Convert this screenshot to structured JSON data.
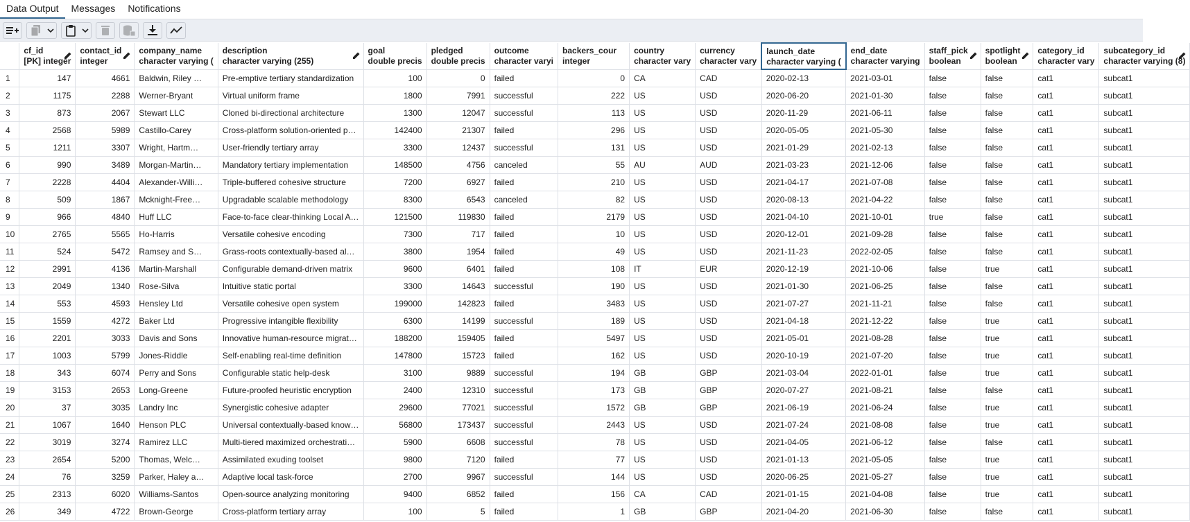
{
  "tabs": [
    "Data Output",
    "Messages",
    "Notifications"
  ],
  "toolbar": {
    "icons": [
      "add-row-icon",
      "copy-icon",
      "chevron-down-icon",
      "paste-icon",
      "chevron-down-icon",
      "delete-icon",
      "save-data-icon",
      "download-icon",
      "graph-icon"
    ]
  },
  "columns": [
    {
      "name": "cf_id",
      "type": "[PK] integer",
      "align": "num",
      "editable": true
    },
    {
      "name": "contact_id",
      "type": "integer",
      "align": "num",
      "editable": true
    },
    {
      "name": "company_name",
      "type": "character varying (",
      "align": "text",
      "editable": false
    },
    {
      "name": "description",
      "type": "character varying (255)",
      "align": "text",
      "editable": true
    },
    {
      "name": "goal",
      "type": "double precis",
      "align": "num",
      "editable": false
    },
    {
      "name": "pledged",
      "type": "double precis",
      "align": "num",
      "editable": false
    },
    {
      "name": "outcome",
      "type": "character varyi",
      "align": "text",
      "editable": false
    },
    {
      "name": "backers_cour",
      "type": "integer",
      "align": "num",
      "editable": false
    },
    {
      "name": "country",
      "type": "character vary",
      "align": "text",
      "editable": false
    },
    {
      "name": "currency",
      "type": "character vary",
      "align": "text",
      "editable": false
    },
    {
      "name": "launch_date",
      "type": "character varying (",
      "align": "text",
      "editable": false
    },
    {
      "name": "end_date",
      "type": "character varying",
      "align": "text",
      "editable": false
    },
    {
      "name": "staff_pick",
      "type": "boolean",
      "align": "text",
      "editable": true
    },
    {
      "name": "spotlight",
      "type": "boolean",
      "align": "text",
      "editable": true
    },
    {
      "name": "category_id",
      "type": "character vary",
      "align": "text",
      "editable": false
    },
    {
      "name": "subcategory_id",
      "type": "character varying (8)",
      "align": "text",
      "editable": true
    }
  ],
  "rows": [
    [
      "1",
      "147",
      "4661",
      "Baldwin, Riley …",
      "Pre-emptive tertiary standardization",
      "100",
      "0",
      "failed",
      "0",
      "CA",
      "CAD",
      "2020-02-13",
      "2021-03-01",
      "false",
      "false",
      "cat1",
      "subcat1"
    ],
    [
      "2",
      "1175",
      "2288",
      "Werner-Bryant",
      "Virtual uniform frame",
      "1800",
      "7991",
      "successful",
      "222",
      "US",
      "USD",
      "2020-06-20",
      "2021-01-30",
      "false",
      "false",
      "cat1",
      "subcat1"
    ],
    [
      "3",
      "873",
      "2067",
      "Stewart LLC",
      "Cloned bi-directional architecture",
      "1300",
      "12047",
      "successful",
      "113",
      "US",
      "USD",
      "2020-11-29",
      "2021-06-11",
      "false",
      "false",
      "cat1",
      "subcat1"
    ],
    [
      "4",
      "2568",
      "5989",
      "Castillo-Carey",
      "Cross-platform solution-oriented p…",
      "142400",
      "21307",
      "failed",
      "296",
      "US",
      "USD",
      "2020-05-05",
      "2021-05-30",
      "false",
      "false",
      "cat1",
      "subcat1"
    ],
    [
      "5",
      "1211",
      "3307",
      "Wright, Hartm…",
      "User-friendly tertiary array",
      "3300",
      "12437",
      "successful",
      "131",
      "US",
      "USD",
      "2021-01-29",
      "2021-02-13",
      "false",
      "false",
      "cat1",
      "subcat1"
    ],
    [
      "6",
      "990",
      "3489",
      "Morgan-Martin…",
      "Mandatory tertiary implementation",
      "148500",
      "4756",
      "canceled",
      "55",
      "AU",
      "AUD",
      "2021-03-23",
      "2021-12-06",
      "false",
      "false",
      "cat1",
      "subcat1"
    ],
    [
      "7",
      "2228",
      "4404",
      "Alexander-Willi…",
      "Triple-buffered cohesive structure",
      "7200",
      "6927",
      "failed",
      "210",
      "US",
      "USD",
      "2021-04-17",
      "2021-07-08",
      "false",
      "false",
      "cat1",
      "subcat1"
    ],
    [
      "8",
      "509",
      "1867",
      "Mcknight-Free…",
      "Upgradable scalable methodology",
      "8300",
      "6543",
      "canceled",
      "82",
      "US",
      "USD",
      "2020-08-13",
      "2021-04-22",
      "false",
      "false",
      "cat1",
      "subcat1"
    ],
    [
      "9",
      "966",
      "4840",
      "Huff LLC",
      "Face-to-face clear-thinking Local A…",
      "121500",
      "119830",
      "failed",
      "2179",
      "US",
      "USD",
      "2021-04-10",
      "2021-10-01",
      "true",
      "false",
      "cat1",
      "subcat1"
    ],
    [
      "10",
      "2765",
      "5565",
      "Ho-Harris",
      "Versatile cohesive encoding",
      "7300",
      "717",
      "failed",
      "10",
      "US",
      "USD",
      "2020-12-01",
      "2021-09-28",
      "false",
      "false",
      "cat1",
      "subcat1"
    ],
    [
      "11",
      "524",
      "5472",
      "Ramsey and S…",
      "Grass-roots contextually-based al…",
      "3800",
      "1954",
      "failed",
      "49",
      "US",
      "USD",
      "2021-11-23",
      "2022-02-05",
      "false",
      "false",
      "cat1",
      "subcat1"
    ],
    [
      "12",
      "2991",
      "4136",
      "Martin-Marshall",
      "Configurable demand-driven matrix",
      "9600",
      "6401",
      "failed",
      "108",
      "IT",
      "EUR",
      "2020-12-19",
      "2021-10-06",
      "false",
      "true",
      "cat1",
      "subcat1"
    ],
    [
      "13",
      "2049",
      "1340",
      "Rose-Silva",
      "Intuitive static portal",
      "3300",
      "14643",
      "successful",
      "190",
      "US",
      "USD",
      "2021-01-30",
      "2021-06-25",
      "false",
      "false",
      "cat1",
      "subcat1"
    ],
    [
      "14",
      "553",
      "4593",
      "Hensley Ltd",
      "Versatile cohesive open system",
      "199000",
      "142823",
      "failed",
      "3483",
      "US",
      "USD",
      "2021-07-27",
      "2021-11-21",
      "false",
      "false",
      "cat1",
      "subcat1"
    ],
    [
      "15",
      "1559",
      "4272",
      "Baker Ltd",
      "Progressive intangible flexibility",
      "6300",
      "14199",
      "successful",
      "189",
      "US",
      "USD",
      "2021-04-18",
      "2021-12-22",
      "false",
      "true",
      "cat1",
      "subcat1"
    ],
    [
      "16",
      "2201",
      "3033",
      "Davis and Sons",
      "Innovative human-resource migrat…",
      "188200",
      "159405",
      "failed",
      "5497",
      "US",
      "USD",
      "2021-05-01",
      "2021-08-28",
      "false",
      "true",
      "cat1",
      "subcat1"
    ],
    [
      "17",
      "1003",
      "5799",
      "Jones-Riddle",
      "Self-enabling real-time definition",
      "147800",
      "15723",
      "failed",
      "162",
      "US",
      "USD",
      "2020-10-19",
      "2021-07-20",
      "false",
      "true",
      "cat1",
      "subcat1"
    ],
    [
      "18",
      "343",
      "6074",
      "Perry and Sons",
      "Configurable static help-desk",
      "3100",
      "9889",
      "successful",
      "194",
      "GB",
      "GBP",
      "2021-03-04",
      "2022-01-01",
      "false",
      "true",
      "cat1",
      "subcat1"
    ],
    [
      "19",
      "3153",
      "2653",
      "Long-Greene",
      "Future-proofed heuristic encryption",
      "2400",
      "12310",
      "successful",
      "173",
      "GB",
      "GBP",
      "2020-07-27",
      "2021-08-21",
      "false",
      "false",
      "cat1",
      "subcat1"
    ],
    [
      "20",
      "37",
      "3035",
      "Landry Inc",
      "Synergistic cohesive adapter",
      "29600",
      "77021",
      "successful",
      "1572",
      "GB",
      "GBP",
      "2021-06-19",
      "2021-06-24",
      "false",
      "true",
      "cat1",
      "subcat1"
    ],
    [
      "21",
      "1067",
      "1640",
      "Henson PLC",
      "Universal contextually-based know…",
      "56800",
      "173437",
      "successful",
      "2443",
      "US",
      "USD",
      "2021-07-24",
      "2021-08-08",
      "false",
      "true",
      "cat1",
      "subcat1"
    ],
    [
      "22",
      "3019",
      "3274",
      "Ramirez LLC",
      "Multi-tiered maximized orchestrati…",
      "5900",
      "6608",
      "successful",
      "78",
      "US",
      "USD",
      "2021-04-05",
      "2021-06-12",
      "false",
      "false",
      "cat1",
      "subcat1"
    ],
    [
      "23",
      "2654",
      "5200",
      "Thomas, Welc…",
      "Assimilated exuding toolset",
      "9800",
      "7120",
      "failed",
      "77",
      "US",
      "USD",
      "2021-01-13",
      "2021-05-05",
      "false",
      "true",
      "cat1",
      "subcat1"
    ],
    [
      "24",
      "76",
      "3259",
      "Parker, Haley a…",
      "Adaptive local task-force",
      "2700",
      "9967",
      "successful",
      "144",
      "US",
      "USD",
      "2020-06-25",
      "2021-05-27",
      "false",
      "true",
      "cat1",
      "subcat1"
    ],
    [
      "25",
      "2313",
      "6020",
      "Williams-Santos",
      "Open-source analyzing monitoring",
      "9400",
      "6852",
      "failed",
      "156",
      "CA",
      "CAD",
      "2021-01-15",
      "2021-04-08",
      "false",
      "true",
      "cat1",
      "subcat1"
    ],
    [
      "26",
      "349",
      "4722",
      "Brown-George",
      "Cross-platform tertiary array",
      "100",
      "5",
      "failed",
      "1",
      "GB",
      "GBP",
      "2021-04-20",
      "2021-06-30",
      "false",
      "false",
      "cat1",
      "subcat1"
    ]
  ],
  "selected_column": "launch_date"
}
